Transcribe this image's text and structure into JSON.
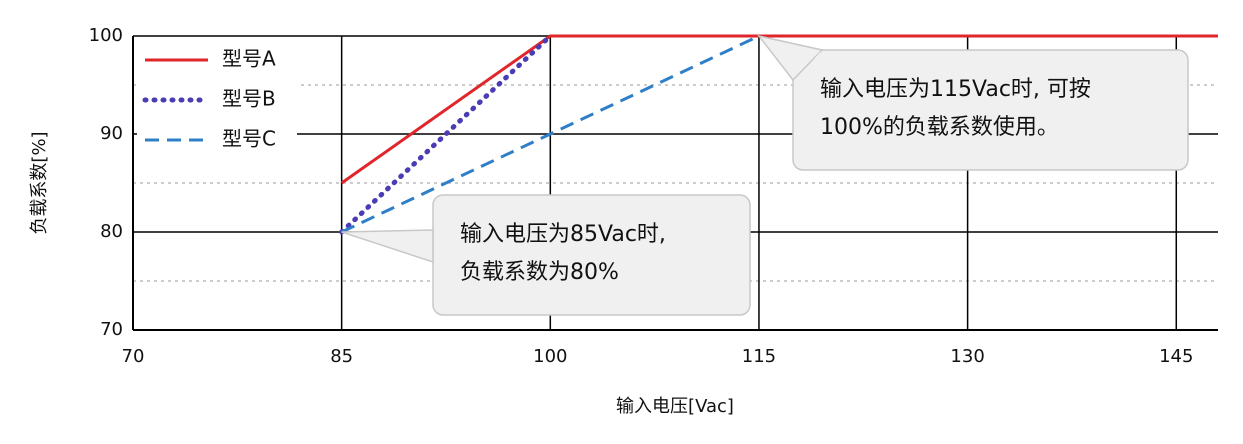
{
  "chart_data": {
    "type": "line",
    "xlabel": "输入电压[Vac]",
    "ylabel": "负载系数[%]",
    "xlim": [
      70,
      148
    ],
    "xticks": [
      70,
      85,
      100,
      115,
      130,
      145
    ],
    "ylim": [
      70,
      100
    ],
    "yticks": [
      70,
      80,
      90,
      100
    ],
    "minor_yticks": [
      75,
      85,
      95
    ],
    "grid": true,
    "legend": "upper left",
    "series": [
      {
        "name": "型号A",
        "color": "#e0262a",
        "style": "solid",
        "x": [
          85,
          100,
          148
        ],
        "values": [
          85,
          100,
          100
        ]
      },
      {
        "name": "型号B",
        "color": "#4a3cb4",
        "style": "dotted",
        "x": [
          85,
          100
        ],
        "values": [
          80,
          100
        ]
      },
      {
        "name": "型号C",
        "color": "#2e7fc8",
        "style": "dashed",
        "x": [
          85,
          115
        ],
        "values": [
          80,
          100
        ]
      }
    ],
    "annotations": [
      {
        "lines": [
          "输入电压为85Vac时,",
          "负载系数为80%"
        ]
      },
      {
        "lines": [
          "输入电压为115Vac时, 可按",
          "100%的负载系数使用。"
        ]
      }
    ]
  }
}
